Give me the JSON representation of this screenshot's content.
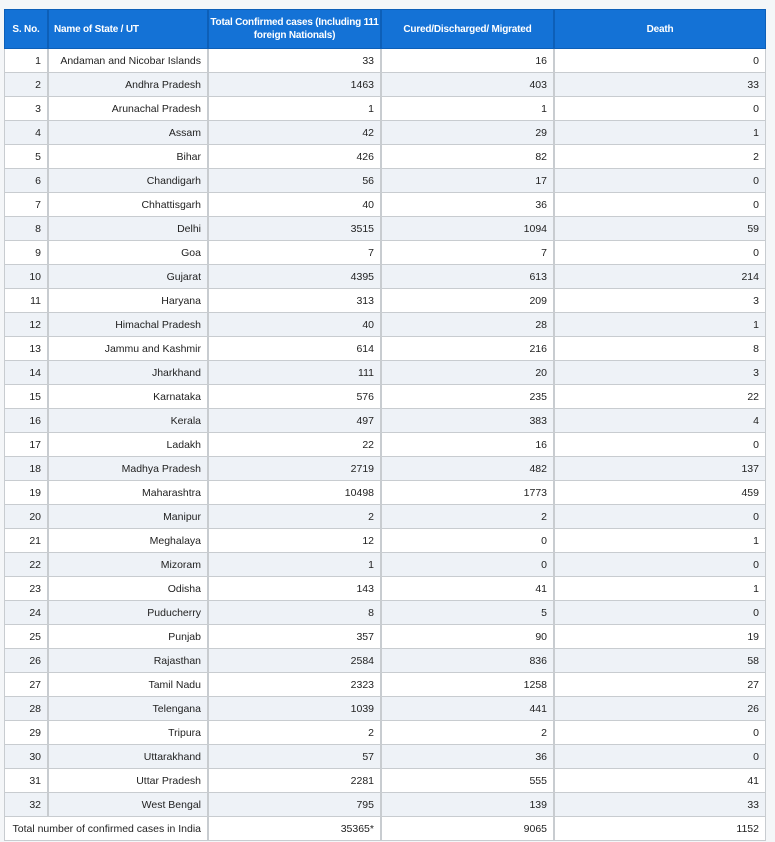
{
  "header": {
    "sno": "S. No.",
    "state": "Name of State / UT",
    "confirmed": "Total Confirmed cases (Including 111 foreign Nationals)",
    "cured": "Cured/Discharged/ Migrated",
    "death": "Death"
  },
  "rows": [
    [
      "1",
      "Andaman and Nicobar Islands",
      "33",
      "16",
      "0"
    ],
    [
      "2",
      "Andhra Pradesh",
      "1463",
      "403",
      "33"
    ],
    [
      "3",
      "Arunachal Pradesh",
      "1",
      "1",
      "0"
    ],
    [
      "4",
      "Assam",
      "42",
      "29",
      "1"
    ],
    [
      "5",
      "Bihar",
      "426",
      "82",
      "2"
    ],
    [
      "6",
      "Chandigarh",
      "56",
      "17",
      "0"
    ],
    [
      "7",
      "Chhattisgarh",
      "40",
      "36",
      "0"
    ],
    [
      "8",
      "Delhi",
      "3515",
      "1094",
      "59"
    ],
    [
      "9",
      "Goa",
      "7",
      "7",
      "0"
    ],
    [
      "10",
      "Gujarat",
      "4395",
      "613",
      "214"
    ],
    [
      "11",
      "Haryana",
      "313",
      "209",
      "3"
    ],
    [
      "12",
      "Himachal Pradesh",
      "40",
      "28",
      "1"
    ],
    [
      "13",
      "Jammu and Kashmir",
      "614",
      "216",
      "8"
    ],
    [
      "14",
      "Jharkhand",
      "111",
      "20",
      "3"
    ],
    [
      "15",
      "Karnataka",
      "576",
      "235",
      "22"
    ],
    [
      "16",
      "Kerala",
      "497",
      "383",
      "4"
    ],
    [
      "17",
      "Ladakh",
      "22",
      "16",
      "0"
    ],
    [
      "18",
      "Madhya Pradesh",
      "2719",
      "482",
      "137"
    ],
    [
      "19",
      "Maharashtra",
      "10498",
      "1773",
      "459"
    ],
    [
      "20",
      "Manipur",
      "2",
      "2",
      "0"
    ],
    [
      "21",
      "Meghalaya",
      "12",
      "0",
      "1"
    ],
    [
      "22",
      "Mizoram",
      "1",
      "0",
      "0"
    ],
    [
      "23",
      "Odisha",
      "143",
      "41",
      "1"
    ],
    [
      "24",
      "Puducherry",
      "8",
      "5",
      "0"
    ],
    [
      "25",
      "Punjab",
      "357",
      "90",
      "19"
    ],
    [
      "26",
      "Rajasthan",
      "2584",
      "836",
      "58"
    ],
    [
      "27",
      "Tamil Nadu",
      "2323",
      "1258",
      "27"
    ],
    [
      "28",
      "Telengana",
      "1039",
      "441",
      "26"
    ],
    [
      "29",
      "Tripura",
      "2",
      "2",
      "0"
    ],
    [
      "30",
      "Uttarakhand",
      "57",
      "36",
      "0"
    ],
    [
      "31",
      "Uttar Pradesh",
      "2281",
      "555",
      "41"
    ],
    [
      "32",
      "West Bengal",
      "795",
      "139",
      "33"
    ]
  ],
  "total": {
    "label": "Total number of confirmed cases in India",
    "confirmed": "35365*",
    "cured": "9065",
    "death": "1152"
  },
  "colors": {
    "header": "#1472d6",
    "alt_row": "#eef2f7"
  }
}
